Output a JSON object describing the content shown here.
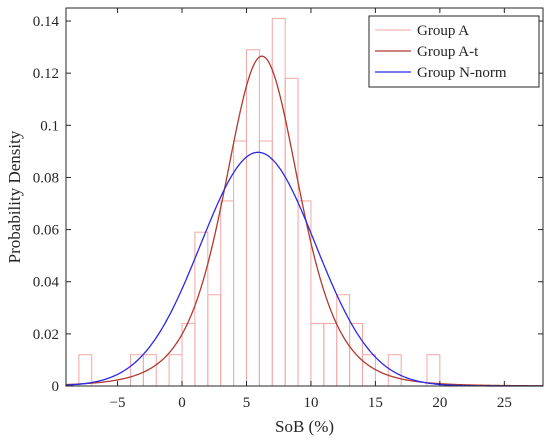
{
  "chart_data": {
    "type": "histogram+line",
    "xlabel": "SoB (%)",
    "ylabel": "Probability Density",
    "xlim": [
      -9,
      28
    ],
    "ylim": [
      0,
      0.145
    ],
    "xticks": [
      -5,
      0,
      5,
      10,
      15,
      20,
      25
    ],
    "yticks": [
      0,
      0.02,
      0.04,
      0.06,
      0.08,
      0.1,
      0.12,
      0.14
    ],
    "ytick_labels": [
      "0",
      "0.02",
      "0.04",
      "0.06",
      "0.08",
      "0.1",
      "0.12",
      "0.14"
    ],
    "grid": false,
    "legend_position": "top-right",
    "histogram": {
      "name": "Group A",
      "color": "#f4a6a6",
      "bin_width": 1,
      "bins": [
        {
          "x0": -8,
          "x1": -7,
          "density": 0.012
        },
        {
          "x0": -7,
          "x1": -6,
          "density": 0.0
        },
        {
          "x0": -6,
          "x1": -5,
          "density": 0.0
        },
        {
          "x0": -5,
          "x1": -4,
          "density": 0.0
        },
        {
          "x0": -4,
          "x1": -3,
          "density": 0.012
        },
        {
          "x0": -3,
          "x1": -2,
          "density": 0.012
        },
        {
          "x0": -2,
          "x1": -1,
          "density": 0.0
        },
        {
          "x0": -1,
          "x1": 0,
          "density": 0.012
        },
        {
          "x0": 0,
          "x1": 1,
          "density": 0.024
        },
        {
          "x0": 1,
          "x1": 2,
          "density": 0.059
        },
        {
          "x0": 2,
          "x1": 3,
          "density": 0.035
        },
        {
          "x0": 3,
          "x1": 4,
          "density": 0.071
        },
        {
          "x0": 4,
          "x1": 5,
          "density": 0.094
        },
        {
          "x0": 5,
          "x1": 6,
          "density": 0.129
        },
        {
          "x0": 6,
          "x1": 7,
          "density": 0.094
        },
        {
          "x0": 7,
          "x1": 8,
          "density": 0.141
        },
        {
          "x0": 8,
          "x1": 9,
          "density": 0.118
        },
        {
          "x0": 9,
          "x1": 10,
          "density": 0.071
        },
        {
          "x0": 10,
          "x1": 11,
          "density": 0.024
        },
        {
          "x0": 11,
          "x1": 12,
          "density": 0.024
        },
        {
          "x0": 12,
          "x1": 13,
          "density": 0.035
        },
        {
          "x0": 13,
          "x1": 14,
          "density": 0.024
        },
        {
          "x0": 14,
          "x1": 15,
          "density": 0.012
        },
        {
          "x0": 15,
          "x1": 16,
          "density": 0.0
        },
        {
          "x0": 16,
          "x1": 17,
          "density": 0.012
        },
        {
          "x0": 17,
          "x1": 18,
          "density": 0.0
        },
        {
          "x0": 18,
          "x1": 19,
          "density": 0.0
        },
        {
          "x0": 19,
          "x1": 20,
          "density": 0.012
        }
      ]
    },
    "series": [
      {
        "name": "Group A-t",
        "type": "line",
        "color": "#b03a2e",
        "distribution": "t location-scale",
        "params": {
          "mu": 6.2,
          "sigma": 3.0,
          "nu": 5
        }
      },
      {
        "name": "Group N-norm",
        "type": "line",
        "color": "#2a2ae6",
        "distribution": "normal",
        "params": {
          "mu": 5.9,
          "sigma": 4.45
        }
      }
    ],
    "legend": [
      "Group A",
      "Group A-t",
      "Group N-norm"
    ]
  }
}
